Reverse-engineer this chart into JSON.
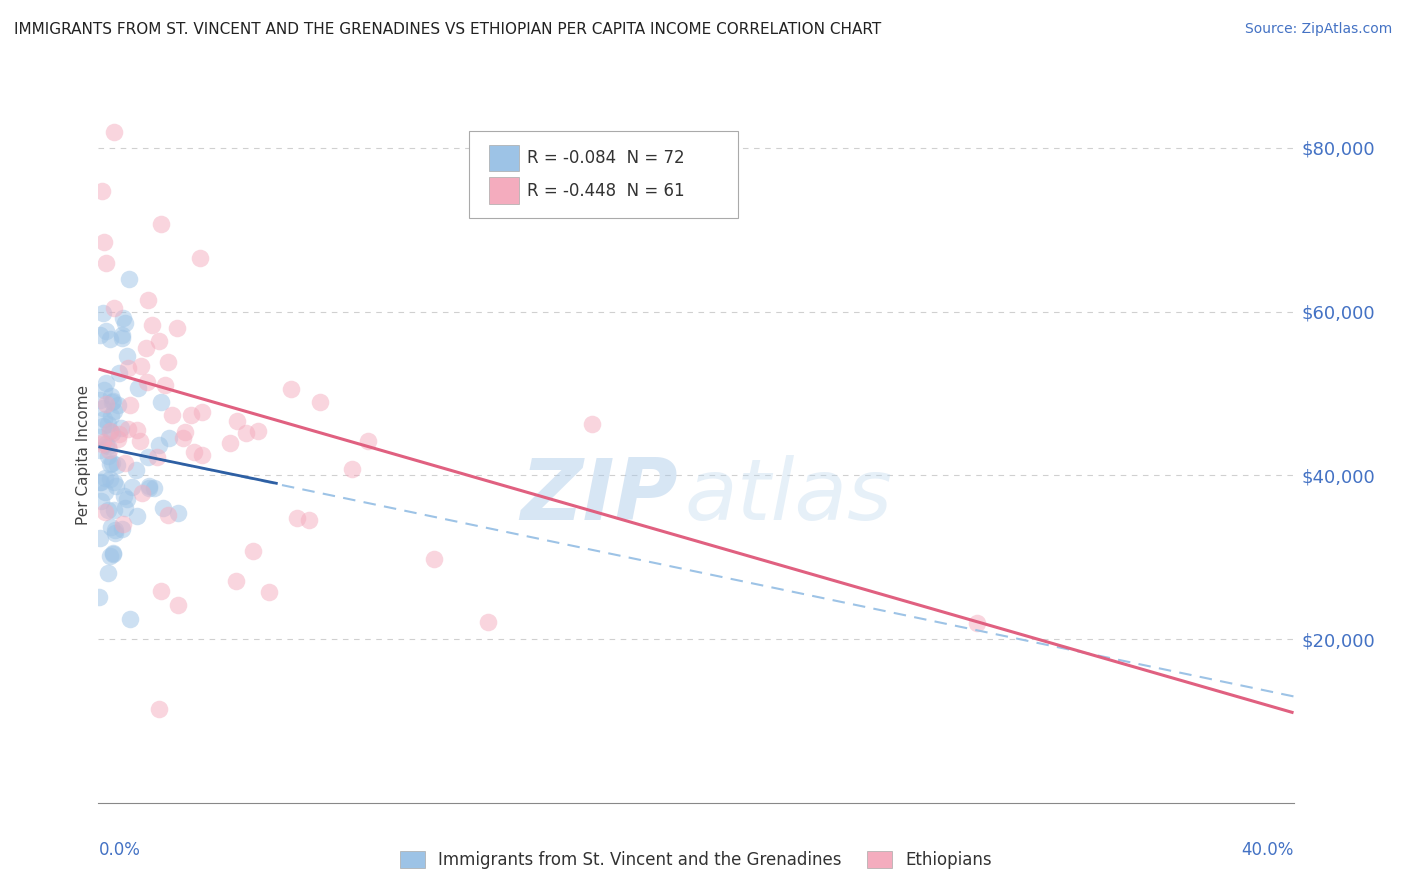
{
  "title": "IMMIGRANTS FROM ST. VINCENT AND THE GRENADINES VS ETHIOPIAN PER CAPITA INCOME CORRELATION CHART",
  "source": "Source: ZipAtlas.com",
  "ylabel": "Per Capita Income",
  "xlim": [
    0.0,
    0.4
  ],
  "ylim": [
    0,
    85000
  ],
  "yticks": [
    20000,
    40000,
    60000,
    80000
  ],
  "ytick_labels": [
    "$20,000",
    "$40,000",
    "$60,000",
    "$80,000"
  ],
  "blue_scatter_color": "#9dc3e6",
  "pink_scatter_color": "#f4acbe",
  "blue_line_color": "#2e5fa3",
  "pink_line_color": "#e06080",
  "dashed_line_color": "#9dc3e6",
  "grid_color": "#d0d0d0",
  "background_color": "#ffffff",
  "watermark_zip": "ZIP",
  "watermark_atlas": "atlas",
  "legend_blue_label": "R = -0.084  N = 72",
  "legend_pink_label": "R = -0.448  N = 61",
  "legend_blue_color": "#9dc3e6",
  "legend_pink_color": "#f4acbe",
  "bottom_legend_blue": "Immigrants from St. Vincent and the Grenadines",
  "bottom_legend_pink": "Ethiopians",
  "blue_N": 72,
  "pink_N": 61,
  "blue_R": -0.084,
  "pink_R": -0.448,
  "blue_line_x0": 0.0,
  "blue_line_x1": 0.06,
  "blue_line_y0": 43500,
  "blue_line_y1": 39000,
  "dashed_line_x0": 0.0,
  "dashed_line_x1": 0.4,
  "dashed_line_y0": 43500,
  "dashed_line_y1": 13000,
  "pink_line_x0": 0.0,
  "pink_line_x1": 0.4,
  "pink_line_y0": 53000,
  "pink_line_y1": 11000,
  "title_fontsize": 11,
  "source_fontsize": 10,
  "axis_label_fontsize": 11,
  "tick_fontsize": 13,
  "legend_fontsize": 12,
  "scatter_size": 160,
  "scatter_alpha": 0.5
}
